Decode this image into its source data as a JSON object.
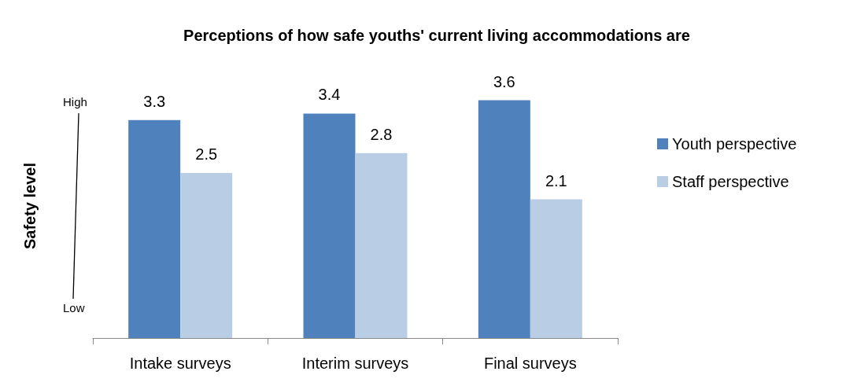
{
  "chart_data": {
    "type": "bar",
    "title": "Perceptions of how safe youths' current living accommodations are",
    "ylabel": "Safety level",
    "categories": [
      "Intake surveys",
      "Interim surveys",
      "Final surveys"
    ],
    "series": [
      {
        "name": "Youth perspective",
        "color": "#4f81bd",
        "values": [
          3.3,
          3.4,
          3.6
        ]
      },
      {
        "name": "Staff perspective",
        "color": "#b9cde5",
        "values": [
          2.5,
          2.8,
          2.1
        ]
      }
    ],
    "annotations": [
      "High",
      "Low"
    ],
    "data_labels": true,
    "grid": false,
    "legend": "right"
  }
}
